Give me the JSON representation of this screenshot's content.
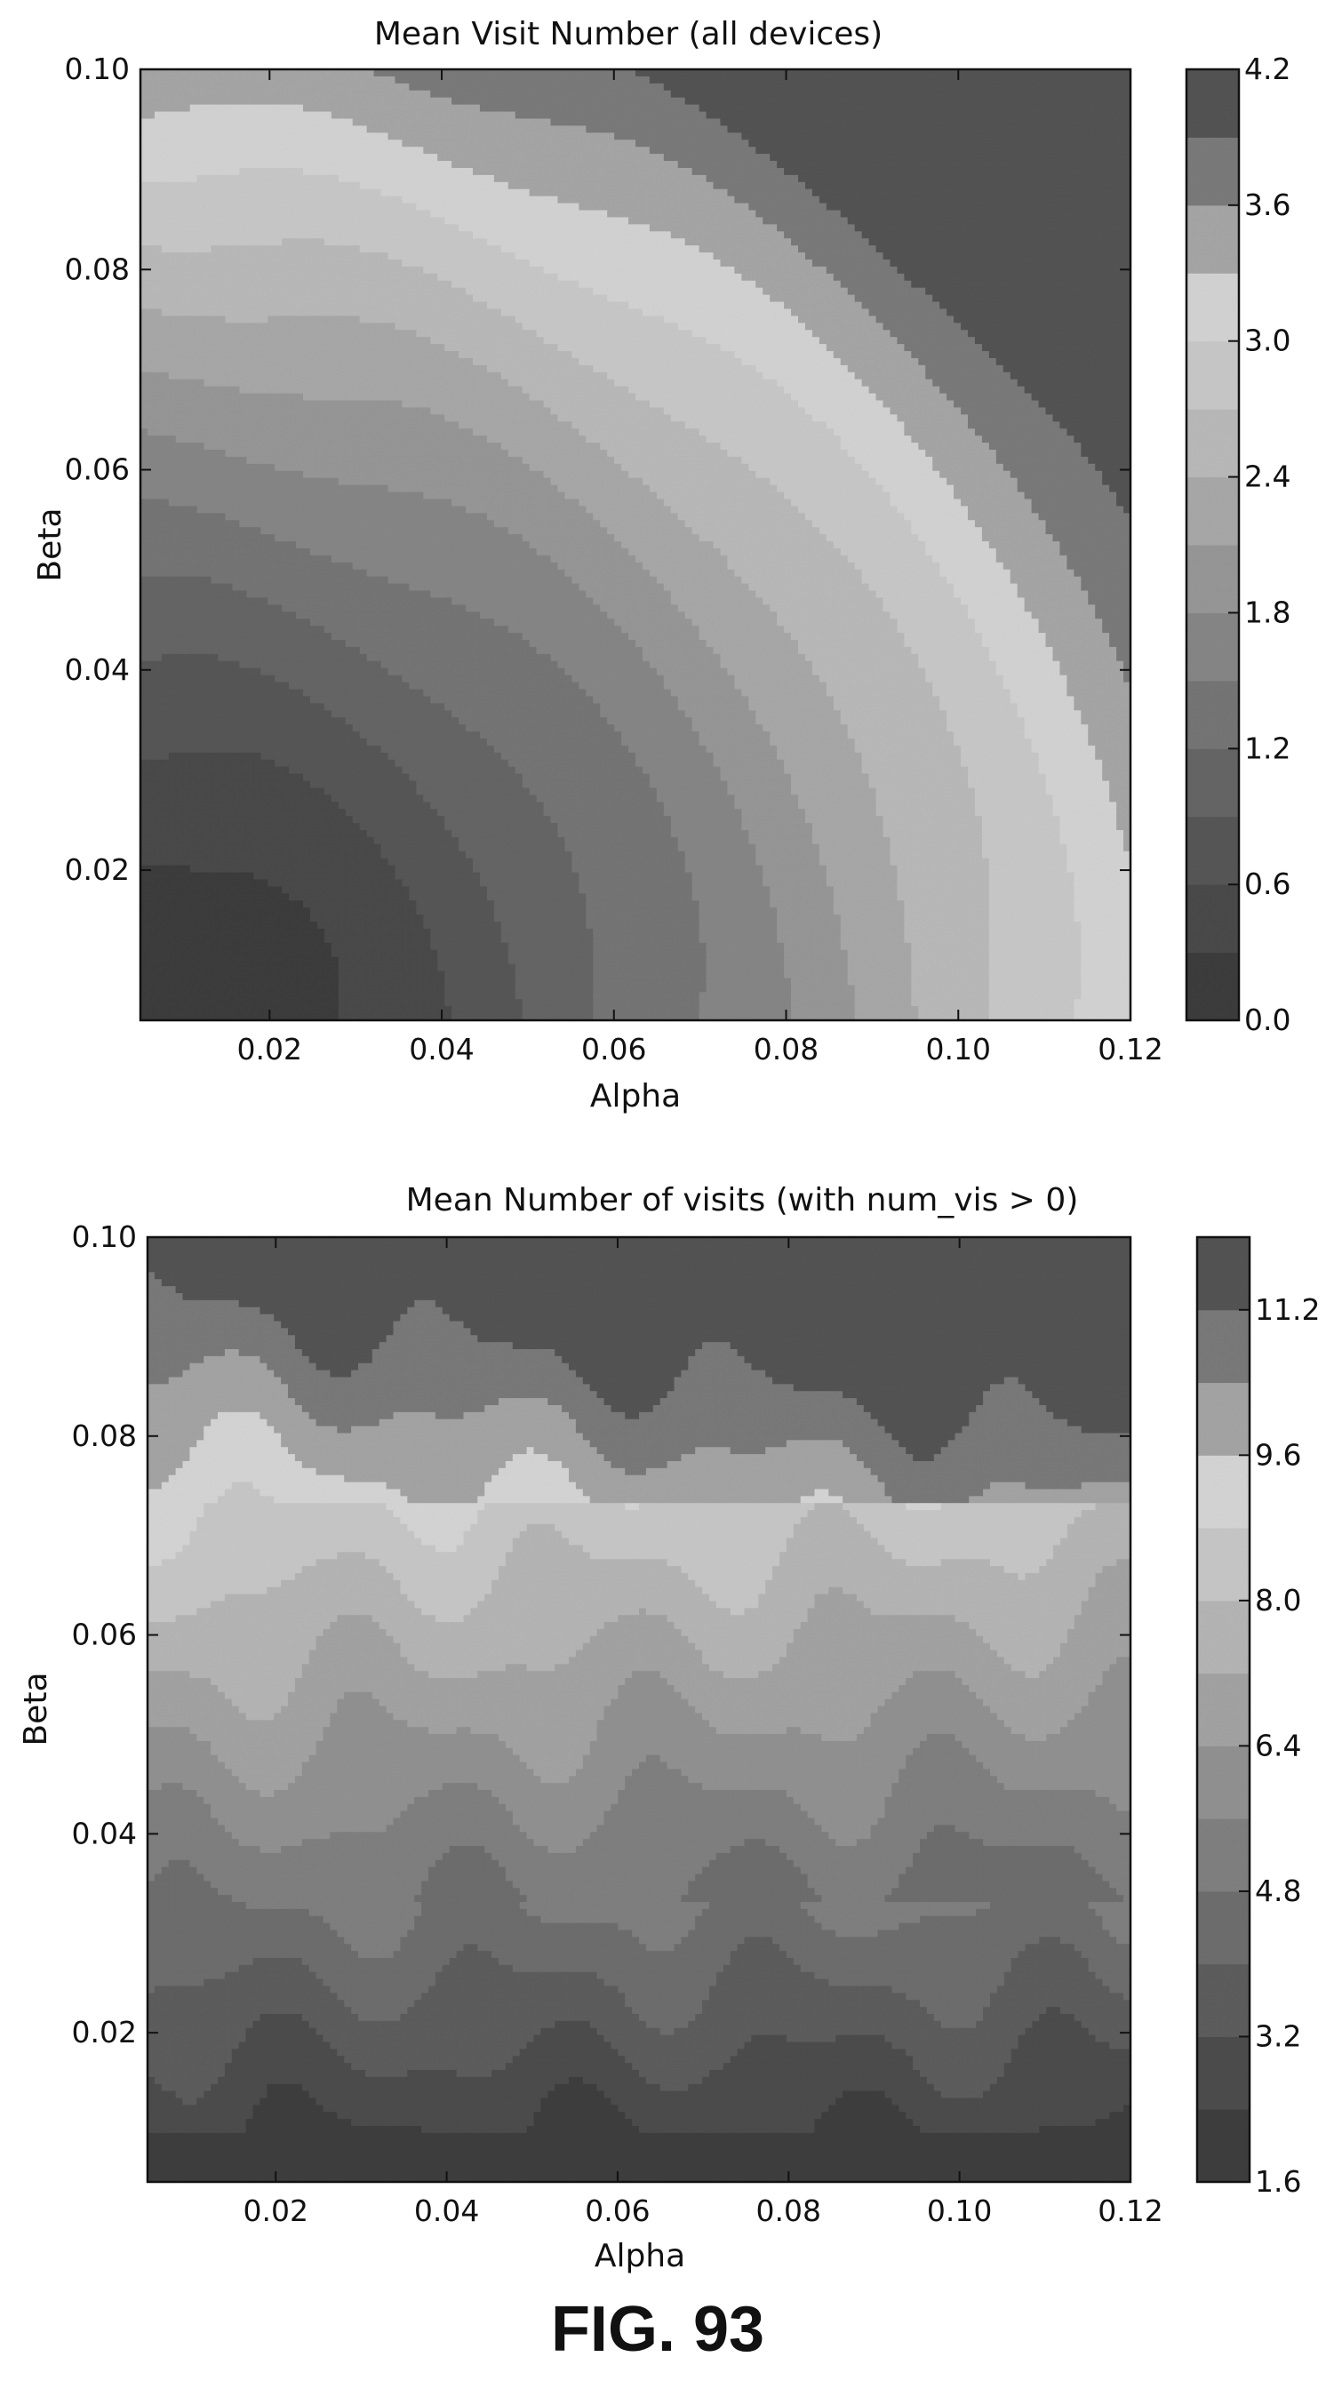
{
  "figure_label": "FIG. 93",
  "chart_data": [
    {
      "type": "heatmap",
      "subtype": "filled-contour",
      "title": "Mean Visit Number (all devices)",
      "xlabel": "Alpha",
      "ylabel": "Beta",
      "xlim": [
        0.005,
        0.12
      ],
      "ylim": [
        0.005,
        0.1
      ],
      "x_ticks": [
        0.02,
        0.04,
        0.06,
        0.08,
        0.1,
        0.12
      ],
      "x_tick_labels": [
        "0.02",
        "0.04",
        "0.06",
        "0.08",
        "0.10",
        "0.12"
      ],
      "y_ticks": [
        0.02,
        0.04,
        0.06,
        0.08,
        0.1
      ],
      "y_tick_labels": [
        "0.02",
        "0.04",
        "0.06",
        "0.08",
        "0.10"
      ],
      "colorbar": {
        "min": 0.0,
        "max": 4.2,
        "levels": [
          0.0,
          0.3,
          0.6,
          0.9,
          1.2,
          1.5,
          1.8,
          2.1,
          2.4,
          2.7,
          3.0,
          3.3,
          3.6,
          3.9,
          4.2
        ],
        "ticks": [
          0.0,
          0.6,
          1.2,
          1.8,
          2.4,
          3.0,
          3.6,
          4.2
        ],
        "tick_labels": [
          "0.0",
          "0.6",
          "1.2",
          "1.8",
          "2.4",
          "3.0",
          "3.6",
          "4.2"
        ],
        "colormap": "grayscale, dark at both ends, lightest in mid-upper range",
        "level_colors": [
          "#3d3d3d",
          "#4a4a4a",
          "#575757",
          "#666666",
          "#767676",
          "#878787",
          "#989898",
          "#a9a9a9",
          "#bababa",
          "#c9c9c9",
          "#d4d4d4",
          "#a7a7a7",
          "#7b7b7b",
          "#545454"
        ]
      },
      "description_of_field": "values rise from ~0 near the origin toward ~3.3 in the upper right, dropping to ~4 bands at far upper-right corner",
      "grid": false
    },
    {
      "type": "heatmap",
      "subtype": "filled-contour",
      "title": "Mean Number of visits (with num_vis > 0)",
      "xlabel": "Alpha",
      "ylabel": "Beta",
      "xlim": [
        0.005,
        0.12
      ],
      "ylim": [
        0.005,
        0.1
      ],
      "x_ticks": [
        0.02,
        0.04,
        0.06,
        0.08,
        0.1,
        0.12
      ],
      "x_tick_labels": [
        "0.02",
        "0.04",
        "0.06",
        "0.08",
        "0.10",
        "0.12"
      ],
      "y_ticks": [
        0.02,
        0.04,
        0.06,
        0.08,
        0.1
      ],
      "y_tick_labels": [
        "0.02",
        "0.04",
        "0.06",
        "0.08",
        "0.10"
      ],
      "colorbar": {
        "min": 1.6,
        "max": 12.0,
        "levels": [
          1.6,
          2.4,
          3.2,
          4.0,
          4.8,
          5.6,
          6.4,
          7.2,
          8.0,
          8.8,
          9.6,
          10.4,
          11.2,
          12.0
        ],
        "ticks": [
          1.6,
          3.2,
          4.8,
          6.4,
          8.0,
          9.6,
          11.2
        ],
        "tick_labels": [
          "1.6",
          "3.2",
          "4.8",
          "6.4",
          "8.0",
          "9.6",
          "11.2"
        ],
        "colormap": "grayscale, dark at both ends, lightest near 8.8",
        "level_colors": [
          "#3f3f3f",
          "#4d4d4d",
          "#5d5d5d",
          "#6e6e6e",
          "#808080",
          "#929292",
          "#a4a4a4",
          "#b6b6b6",
          "#c8c8c8",
          "#d6d6d6",
          "#a5a5a5",
          "#7a7a7a",
          "#545454"
        ]
      },
      "description_of_field": "horizontal bands: ~2 at bottom rising to ~6-7 mid-height, ~9 around beta 0.075-0.085, then darker (~11-12) at the top",
      "grid": false
    }
  ]
}
